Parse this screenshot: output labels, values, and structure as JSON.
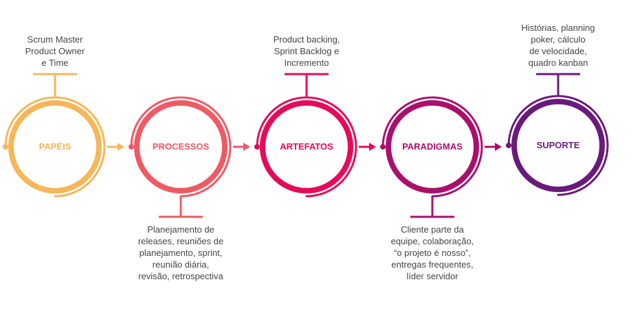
{
  "stages": [
    {
      "label": "PAPÉIS",
      "color": "#F6B65A",
      "desc_position": "top",
      "desc_lines": [
        "Scrum Master",
        "Product Owner",
        "e Time"
      ]
    },
    {
      "label": "PROCESSOS",
      "color": "#EF5A64",
      "desc_position": "bottom",
      "desc_lines": [
        "Planejamento de",
        "releases, reuniões de",
        "planejamento, sprint,",
        "reunião diária,",
        "revisão, retrospectiva"
      ]
    },
    {
      "label": "ARTEFATOS",
      "color": "#E50B5A",
      "desc_position": "top",
      "desc_lines": [
        "Product backing,",
        "Sprint Backlog e",
        "Incremento"
      ]
    },
    {
      "label": "PARADIGMAS",
      "color": "#AB0F6C",
      "desc_position": "bottom",
      "desc_lines": [
        "Cliente parte da",
        "equipe, colaboração,",
        "“o projeto é nosso”,",
        "entregas frequentes,",
        "líder servidor"
      ]
    },
    {
      "label": "SUPORTE",
      "color": "#6A1A7B",
      "desc_position": "top",
      "desc_lines": [
        "Histórias, planning",
        "poker, cálculo",
        "de velocidade,",
        "quadro kanban"
      ]
    }
  ]
}
